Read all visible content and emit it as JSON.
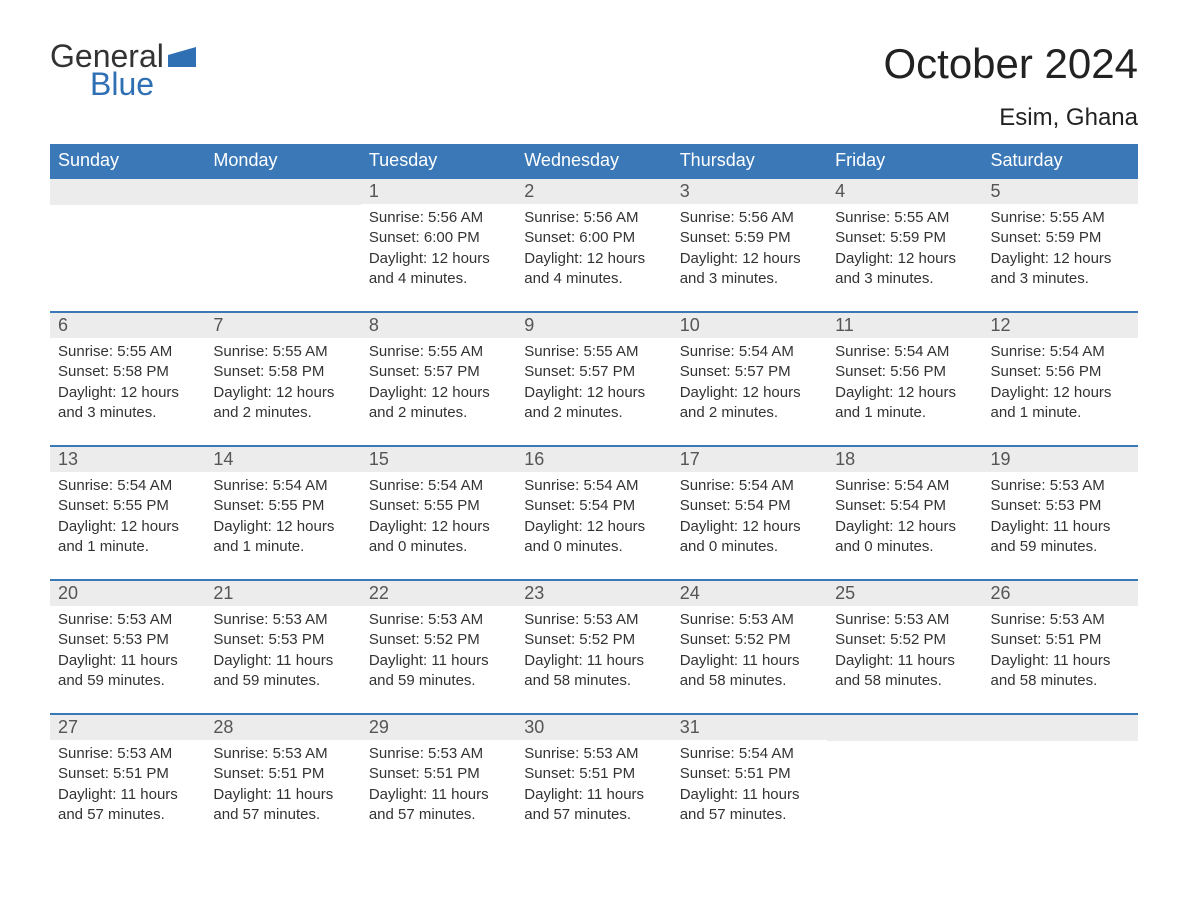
{
  "logo": {
    "text1": "General",
    "text2": "Blue"
  },
  "title": "October 2024",
  "subtitle": "Esim, Ghana",
  "colors": {
    "header_bg": "#3a78b8",
    "header_text": "#ffffff",
    "daynum_bg": "#ececec",
    "border": "#3a78b8",
    "logo_blue": "#2f6fb3",
    "body_text": "#333333",
    "page_bg": "#ffffff"
  },
  "typography": {
    "title_fontsize": 42,
    "subtitle_fontsize": 24,
    "weekday_fontsize": 18,
    "daynum_fontsize": 18,
    "body_fontsize": 15
  },
  "weekdays": [
    "Sunday",
    "Monday",
    "Tuesday",
    "Wednesday",
    "Thursday",
    "Friday",
    "Saturday"
  ],
  "weeks": [
    [
      null,
      null,
      {
        "n": "1",
        "sunrise": "Sunrise: 5:56 AM",
        "sunset": "Sunset: 6:00 PM",
        "dl1": "Daylight: 12 hours",
        "dl2": "and 4 minutes."
      },
      {
        "n": "2",
        "sunrise": "Sunrise: 5:56 AM",
        "sunset": "Sunset: 6:00 PM",
        "dl1": "Daylight: 12 hours",
        "dl2": "and 4 minutes."
      },
      {
        "n": "3",
        "sunrise": "Sunrise: 5:56 AM",
        "sunset": "Sunset: 5:59 PM",
        "dl1": "Daylight: 12 hours",
        "dl2": "and 3 minutes."
      },
      {
        "n": "4",
        "sunrise": "Sunrise: 5:55 AM",
        "sunset": "Sunset: 5:59 PM",
        "dl1": "Daylight: 12 hours",
        "dl2": "and 3 minutes."
      },
      {
        "n": "5",
        "sunrise": "Sunrise: 5:55 AM",
        "sunset": "Sunset: 5:59 PM",
        "dl1": "Daylight: 12 hours",
        "dl2": "and 3 minutes."
      }
    ],
    [
      {
        "n": "6",
        "sunrise": "Sunrise: 5:55 AM",
        "sunset": "Sunset: 5:58 PM",
        "dl1": "Daylight: 12 hours",
        "dl2": "and 3 minutes."
      },
      {
        "n": "7",
        "sunrise": "Sunrise: 5:55 AM",
        "sunset": "Sunset: 5:58 PM",
        "dl1": "Daylight: 12 hours",
        "dl2": "and 2 minutes."
      },
      {
        "n": "8",
        "sunrise": "Sunrise: 5:55 AM",
        "sunset": "Sunset: 5:57 PM",
        "dl1": "Daylight: 12 hours",
        "dl2": "and 2 minutes."
      },
      {
        "n": "9",
        "sunrise": "Sunrise: 5:55 AM",
        "sunset": "Sunset: 5:57 PM",
        "dl1": "Daylight: 12 hours",
        "dl2": "and 2 minutes."
      },
      {
        "n": "10",
        "sunrise": "Sunrise: 5:54 AM",
        "sunset": "Sunset: 5:57 PM",
        "dl1": "Daylight: 12 hours",
        "dl2": "and 2 minutes."
      },
      {
        "n": "11",
        "sunrise": "Sunrise: 5:54 AM",
        "sunset": "Sunset: 5:56 PM",
        "dl1": "Daylight: 12 hours",
        "dl2": "and 1 minute."
      },
      {
        "n": "12",
        "sunrise": "Sunrise: 5:54 AM",
        "sunset": "Sunset: 5:56 PM",
        "dl1": "Daylight: 12 hours",
        "dl2": "and 1 minute."
      }
    ],
    [
      {
        "n": "13",
        "sunrise": "Sunrise: 5:54 AM",
        "sunset": "Sunset: 5:55 PM",
        "dl1": "Daylight: 12 hours",
        "dl2": "and 1 minute."
      },
      {
        "n": "14",
        "sunrise": "Sunrise: 5:54 AM",
        "sunset": "Sunset: 5:55 PM",
        "dl1": "Daylight: 12 hours",
        "dl2": "and 1 minute."
      },
      {
        "n": "15",
        "sunrise": "Sunrise: 5:54 AM",
        "sunset": "Sunset: 5:55 PM",
        "dl1": "Daylight: 12 hours",
        "dl2": "and 0 minutes."
      },
      {
        "n": "16",
        "sunrise": "Sunrise: 5:54 AM",
        "sunset": "Sunset: 5:54 PM",
        "dl1": "Daylight: 12 hours",
        "dl2": "and 0 minutes."
      },
      {
        "n": "17",
        "sunrise": "Sunrise: 5:54 AM",
        "sunset": "Sunset: 5:54 PM",
        "dl1": "Daylight: 12 hours",
        "dl2": "and 0 minutes."
      },
      {
        "n": "18",
        "sunrise": "Sunrise: 5:54 AM",
        "sunset": "Sunset: 5:54 PM",
        "dl1": "Daylight: 12 hours",
        "dl2": "and 0 minutes."
      },
      {
        "n": "19",
        "sunrise": "Sunrise: 5:53 AM",
        "sunset": "Sunset: 5:53 PM",
        "dl1": "Daylight: 11 hours",
        "dl2": "and 59 minutes."
      }
    ],
    [
      {
        "n": "20",
        "sunrise": "Sunrise: 5:53 AM",
        "sunset": "Sunset: 5:53 PM",
        "dl1": "Daylight: 11 hours",
        "dl2": "and 59 minutes."
      },
      {
        "n": "21",
        "sunrise": "Sunrise: 5:53 AM",
        "sunset": "Sunset: 5:53 PM",
        "dl1": "Daylight: 11 hours",
        "dl2": "and 59 minutes."
      },
      {
        "n": "22",
        "sunrise": "Sunrise: 5:53 AM",
        "sunset": "Sunset: 5:52 PM",
        "dl1": "Daylight: 11 hours",
        "dl2": "and 59 minutes."
      },
      {
        "n": "23",
        "sunrise": "Sunrise: 5:53 AM",
        "sunset": "Sunset: 5:52 PM",
        "dl1": "Daylight: 11 hours",
        "dl2": "and 58 minutes."
      },
      {
        "n": "24",
        "sunrise": "Sunrise: 5:53 AM",
        "sunset": "Sunset: 5:52 PM",
        "dl1": "Daylight: 11 hours",
        "dl2": "and 58 minutes."
      },
      {
        "n": "25",
        "sunrise": "Sunrise: 5:53 AM",
        "sunset": "Sunset: 5:52 PM",
        "dl1": "Daylight: 11 hours",
        "dl2": "and 58 minutes."
      },
      {
        "n": "26",
        "sunrise": "Sunrise: 5:53 AM",
        "sunset": "Sunset: 5:51 PM",
        "dl1": "Daylight: 11 hours",
        "dl2": "and 58 minutes."
      }
    ],
    [
      {
        "n": "27",
        "sunrise": "Sunrise: 5:53 AM",
        "sunset": "Sunset: 5:51 PM",
        "dl1": "Daylight: 11 hours",
        "dl2": "and 57 minutes."
      },
      {
        "n": "28",
        "sunrise": "Sunrise: 5:53 AM",
        "sunset": "Sunset: 5:51 PM",
        "dl1": "Daylight: 11 hours",
        "dl2": "and 57 minutes."
      },
      {
        "n": "29",
        "sunrise": "Sunrise: 5:53 AM",
        "sunset": "Sunset: 5:51 PM",
        "dl1": "Daylight: 11 hours",
        "dl2": "and 57 minutes."
      },
      {
        "n": "30",
        "sunrise": "Sunrise: 5:53 AM",
        "sunset": "Sunset: 5:51 PM",
        "dl1": "Daylight: 11 hours",
        "dl2": "and 57 minutes."
      },
      {
        "n": "31",
        "sunrise": "Sunrise: 5:54 AM",
        "sunset": "Sunset: 5:51 PM",
        "dl1": "Daylight: 11 hours",
        "dl2": "and 57 minutes."
      },
      null,
      null
    ]
  ]
}
